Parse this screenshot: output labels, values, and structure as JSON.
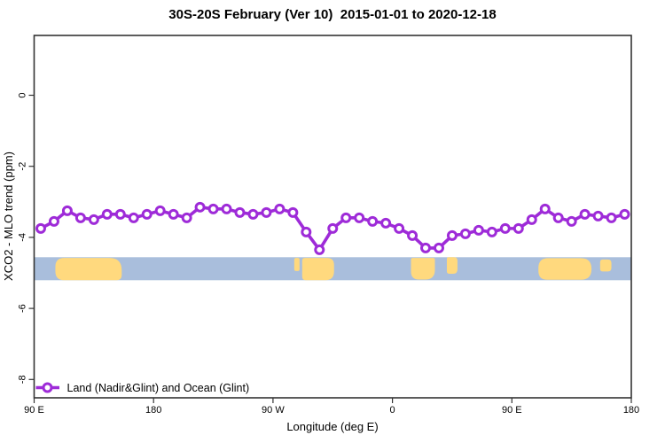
{
  "title": "30S-20S February (Ver 10)  2015-01-01 to 2020-12-18",
  "axes": {
    "xlabel": "Longitude (deg E)",
    "ylabel": "XCO2 - MLO trend (ppm)",
    "x_ticks": [
      {
        "axis_deg": 90,
        "label": "90 E"
      },
      {
        "axis_deg": 180,
        "label": "180"
      },
      {
        "axis_deg": 270,
        "label": "90 W"
      },
      {
        "axis_deg": 360,
        "label": "0"
      },
      {
        "axis_deg": 450,
        "label": "90 E"
      },
      {
        "axis_deg": 540,
        "label": "180"
      }
    ],
    "y_ticks": [
      {
        "value": 0,
        "label": "0"
      },
      {
        "value": -2,
        "label": "-2"
      },
      {
        "value": -4,
        "label": "-4"
      },
      {
        "value": -6,
        "label": "-6"
      },
      {
        "value": -8,
        "label": "-8"
      }
    ],
    "x_range_axis_deg": [
      90,
      540
    ],
    "y_range": [
      -8.5,
      1.7
    ]
  },
  "legend": {
    "label": "Land (Nadir&Glint) and Ocean (Glint)"
  },
  "colors": {
    "series": "#9E2BD8",
    "ocean": "#A9BEDC",
    "land": "#FFD97E",
    "axis": "#333333"
  },
  "chart_data": {
    "type": "line",
    "title": "30S-20S February (Ver 10)  2015-01-01 to 2020-12-18",
    "xlabel": "Longitude (deg E)",
    "ylabel": "XCO2 - MLO trend (ppm)",
    "ylim": [
      -8.5,
      1.7
    ],
    "grid": false,
    "legend_position": "bottom-left",
    "x_note": "axis starts at 90E and wraps eastward around the globe to 180 (axis_deg 90-540; subtract 360 from values > 180 for true longitude)",
    "x_axis_deg": [
      95,
      105,
      115,
      125,
      135,
      145,
      155,
      165,
      175,
      185,
      195,
      205,
      215,
      225,
      235,
      245,
      255,
      265,
      275,
      285,
      295,
      305,
      315,
      325,
      335,
      345,
      355,
      365,
      375,
      385,
      395,
      405,
      415,
      425,
      435,
      445,
      455,
      465,
      475,
      485,
      495,
      505,
      515,
      525,
      535
    ],
    "series": [
      {
        "name": "Land (Nadir&Glint) and Ocean (Glint)",
        "color": "#9E2BD8",
        "marker": "open-circle",
        "values": [
          -3.75,
          -3.55,
          -3.25,
          -3.45,
          -3.5,
          -3.35,
          -3.35,
          -3.45,
          -3.35,
          -3.25,
          -3.35,
          -3.45,
          -3.15,
          -3.2,
          -3.2,
          -3.3,
          -3.35,
          -3.3,
          -3.2,
          -3.3,
          -3.85,
          -4.35,
          -3.75,
          -3.45,
          -3.45,
          -3.55,
          -3.6,
          -3.75,
          -3.95,
          -4.3,
          -4.3,
          -3.95,
          -3.9,
          -3.8,
          -3.85,
          -3.75,
          -3.75,
          -3.5,
          -3.2,
          -3.45,
          -3.55,
          -3.35,
          -3.4,
          -3.45,
          -3.35
        ]
      }
    ],
    "map_band": {
      "description": "land/ocean strip for the 30S-20S latitude band drawn across the plot",
      "ocean_color": "#A9BEDC",
      "land_color": "#FFD97E",
      "value_range_ppm": [
        -4.56,
        -5.21
      ],
      "land_segments_axis_deg": [
        [
          106,
          156
        ],
        [
          286,
          290
        ],
        [
          292,
          316
        ],
        [
          374,
          392
        ],
        [
          401,
          409
        ],
        [
          470,
          510
        ],
        [
          516.5,
          525
        ]
      ]
    }
  }
}
